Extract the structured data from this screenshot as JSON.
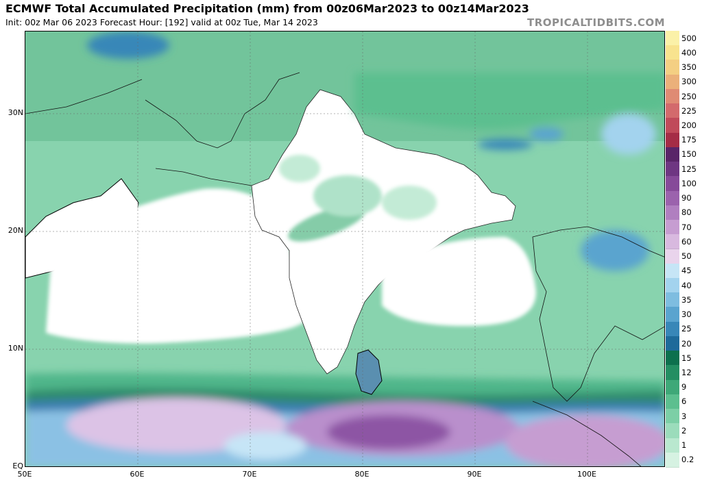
{
  "header": {
    "title": "ECMWF Total Accumulated Precipitation (mm) from 00z06Mar2023 to 00z14Mar2023",
    "subtitle": "Init: 00z Mar 06 2023   Forecast Hour: [192]   valid at 00z Tue, Mar 14 2023",
    "brand": "TROPICALTIDBITS.COM"
  },
  "map": {
    "lon_ticks": [
      "50E",
      "60E",
      "70E",
      "80E",
      "90E",
      "100E"
    ],
    "lat_ticks": [
      "30N",
      "20N",
      "10N",
      "EQ"
    ],
    "lon_range": [
      50,
      107
    ],
    "lat_range": [
      0,
      37
    ],
    "land_color": "#ffffff",
    "border_color": "#000000"
  },
  "legend": {
    "levels": [
      "0.2",
      "1",
      "2",
      "3",
      "6",
      "9",
      "12",
      "15",
      "20",
      "25",
      "30",
      "35",
      "40",
      "45",
      "50",
      "60",
      "70",
      "80",
      "90",
      "100",
      "125",
      "150",
      "175",
      "200",
      "225",
      "250",
      "300",
      "350",
      "400",
      "500"
    ],
    "colors": [
      "#d6f2e2",
      "#b9e8cf",
      "#9bdcbb",
      "#7ccfa6",
      "#5cbf8f",
      "#3ea878",
      "#238e62",
      "#0c704d",
      "#1e6a9a",
      "#3887b8",
      "#5aa4cf",
      "#7ebde0",
      "#a3d3ee",
      "#c6e5f6",
      "#e9d4ec",
      "#d8b9df",
      "#c69dd1",
      "#b07fc0",
      "#9b62ad",
      "#864a99",
      "#6e3682",
      "#592468",
      "#a52c46",
      "#c04a5a",
      "#d36a6c",
      "#df8b74",
      "#ebb07a",
      "#f4cf83",
      "#f8e38e",
      "#fbf1a8"
    ]
  }
}
